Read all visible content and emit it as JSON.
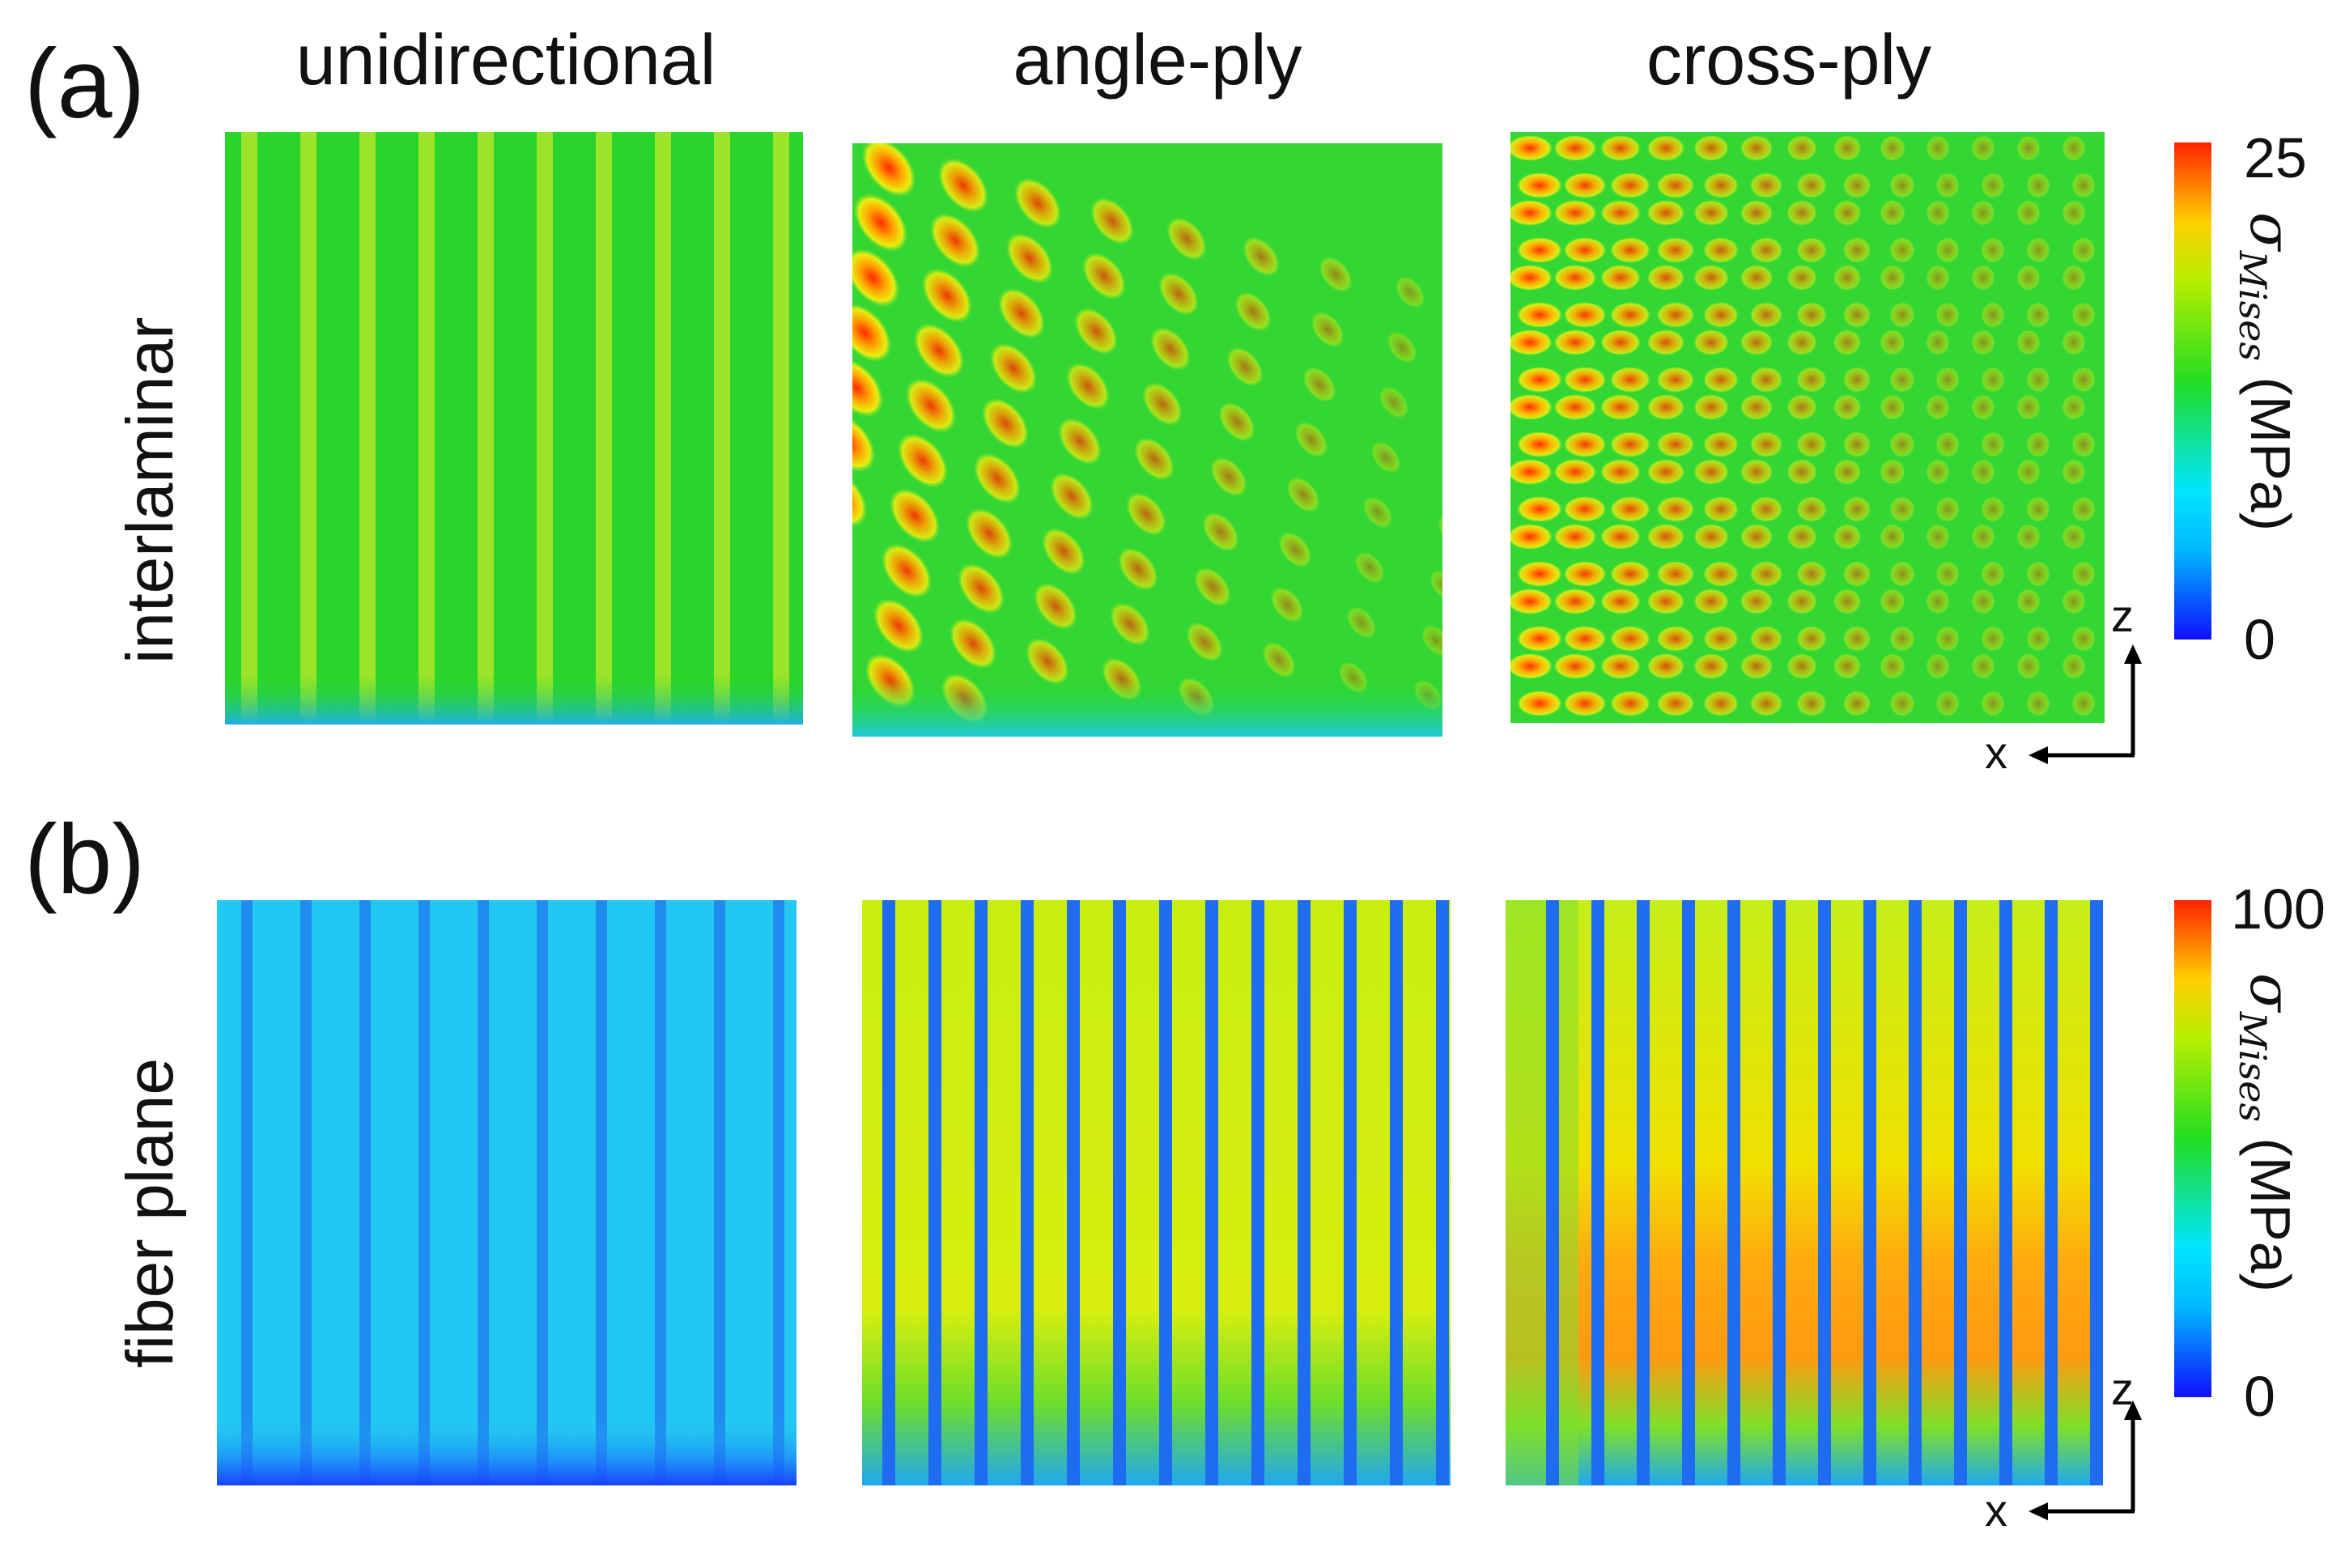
{
  "rows": [
    {
      "id": "a",
      "label": "(a)",
      "side_label": "interlaminar",
      "colorbar": {
        "max": "25",
        "min": "0"
      }
    },
    {
      "id": "b",
      "label": "(b)",
      "side_label": "fiber plane",
      "colorbar": {
        "max": "100",
        "min": "0"
      }
    }
  ],
  "columns": [
    "unidirectional",
    "angle-ply",
    "cross-ply"
  ],
  "colorbar_title": {
    "symbol": "σ",
    "subscript": "Mises",
    "unit": "(MPa)"
  },
  "axes": {
    "vertical": "z",
    "horizontal": "x"
  },
  "colormap": [
    "#1010ff",
    "#00e5ff",
    "#22dd22",
    "#eeee00",
    "#ff2200"
  ]
}
